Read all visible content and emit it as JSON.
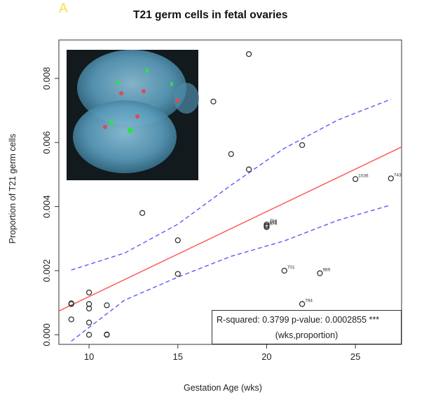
{
  "panel_label": "A",
  "chart_data": {
    "type": "scatter",
    "title": "T21 germ cells in fetal ovaries",
    "xlabel": "Gestation Age (wks)",
    "ylabel": "Proportion of T21 germ cells",
    "xlim": [
      8.3,
      27.6
    ],
    "ylim": [
      -0.0003,
      0.0092
    ],
    "xticks": [
      10,
      15,
      20,
      25
    ],
    "yticks": [
      0.0,
      0.002,
      0.004,
      0.006,
      0.008
    ],
    "ytick_labels": [
      "0.000",
      "0.002",
      "0.004",
      "0.006",
      "0.008"
    ],
    "grid": false,
    "points": [
      {
        "x": 9,
        "y": 0.00098,
        "label": ""
      },
      {
        "x": 9,
        "y": 0.00096,
        "label": ""
      },
      {
        "x": 9,
        "y": 0.00048,
        "label": ""
      },
      {
        "x": 10,
        "y": 0.00132,
        "label": ""
      },
      {
        "x": 10,
        "y": 0.00096,
        "label": ""
      },
      {
        "x": 10,
        "y": 0.00082,
        "label": ""
      },
      {
        "x": 10,
        "y": 0.00038,
        "label": ""
      },
      {
        "x": 10,
        "y": 0.0,
        "label": ""
      },
      {
        "x": 11,
        "y": 0.00092,
        "label": ""
      },
      {
        "x": 11,
        "y": 0.0,
        "label": ""
      },
      {
        "x": 11,
        "y": 1e-05,
        "label": ""
      },
      {
        "x": 13,
        "y": 0.0038,
        "label": ""
      },
      {
        "x": 15,
        "y": 0.00295,
        "label": ""
      },
      {
        "x": 15,
        "y": 0.0019,
        "label": ""
      },
      {
        "x": 17,
        "y": 0.00728,
        "label": ""
      },
      {
        "x": 18,
        "y": 0.00564,
        "label": ""
      },
      {
        "x": 19,
        "y": 0.00876,
        "label": ""
      },
      {
        "x": 19,
        "y": 0.00516,
        "label": ""
      },
      {
        "x": 20,
        "y": 0.00344,
        "label": "704"
      },
      {
        "x": 20,
        "y": 0.0034,
        "label": "665"
      },
      {
        "x": 20,
        "y": 0.00336,
        "label": "674"
      },
      {
        "x": 21,
        "y": 0.002,
        "label": "701"
      },
      {
        "x": 22,
        "y": 0.00592,
        "label": ""
      },
      {
        "x": 22,
        "y": 0.00096,
        "label": "794"
      },
      {
        "x": 23,
        "y": 0.00192,
        "label": "989"
      },
      {
        "x": 25,
        "y": 0.00486,
        "label": "1036"
      },
      {
        "x": 27,
        "y": 0.00488,
        "label": "743"
      }
    ],
    "fit_line": {
      "x": [
        8.3,
        27.6
      ],
      "y": [
        0.00074,
        0.00586
      ],
      "color": "#ff5a5a"
    },
    "confidence_band": {
      "upper": {
        "x": [
          9,
          12,
          15,
          18,
          21,
          24,
          27
        ],
        "y": [
          0.00202,
          0.00255,
          0.00345,
          0.00467,
          0.00582,
          0.0067,
          0.00735
        ]
      },
      "lower": {
        "x": [
          9,
          12,
          15,
          18,
          21,
          24,
          27
        ],
        "y": [
          -0.0002,
          0.00108,
          0.0018,
          0.00245,
          0.00293,
          0.00357,
          0.00405
        ]
      },
      "color": "#5a5aff"
    },
    "annotation": {
      "line1": "R-squared: 0.3799 p-value: 0.0002855 ***",
      "line2": "(wks,proportion)"
    },
    "inset_image": "fluorescence micrograph of two nuclei with red and green FISH signals"
  }
}
